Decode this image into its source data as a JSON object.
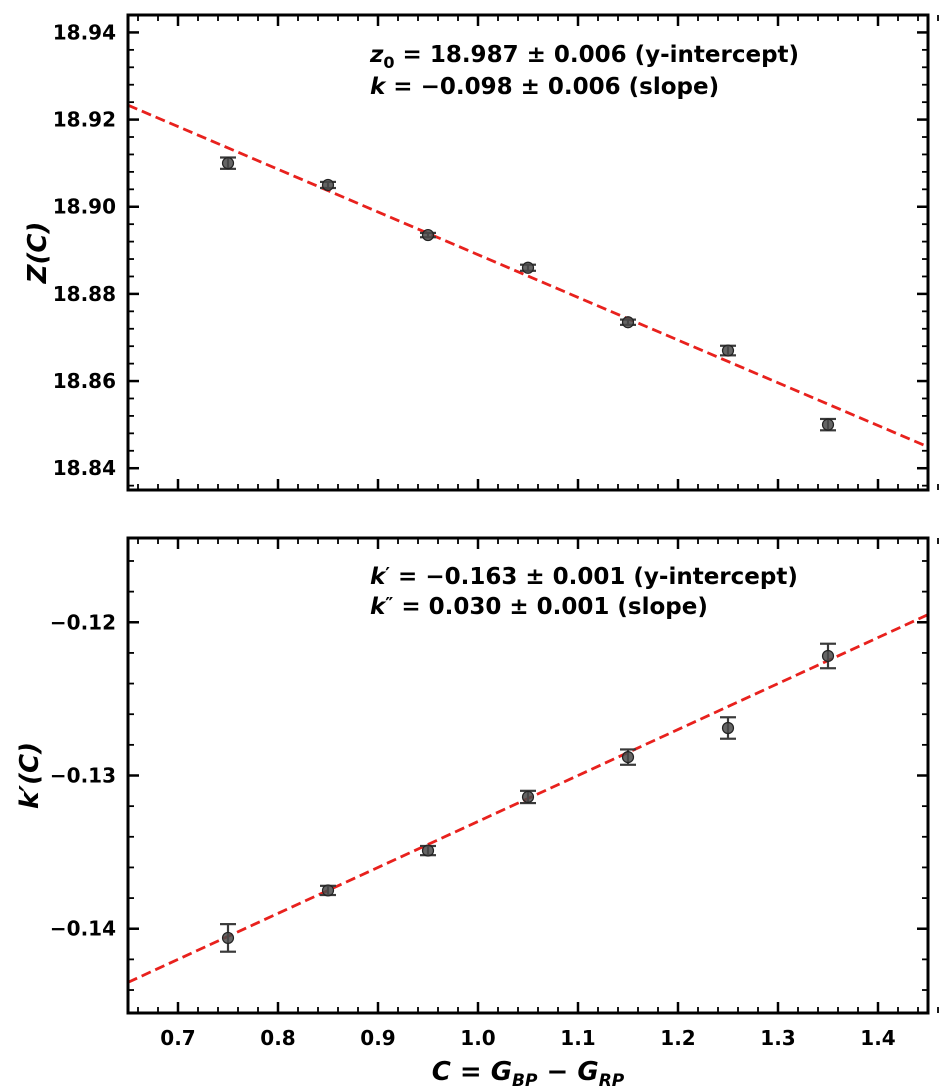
{
  "chart_data": [
    {
      "type": "scatter",
      "xlim": [
        0.65,
        1.45
      ],
      "ylim": [
        18.835,
        18.944
      ],
      "yticks": [
        "18.84",
        "18.86",
        "18.88",
        "18.90",
        "18.92",
        "18.94"
      ],
      "ytick_values": [
        18.84,
        18.86,
        18.88,
        18.9,
        18.92,
        18.94
      ],
      "ylabel": "Z(C)",
      "annotation_lines": [
        {
          "sym": "z",
          "sub": "0",
          "sup": "",
          "rest": " = 18.987 ± 0.006 (y-intercept)"
        },
        {
          "sym": "k",
          "sub": "",
          "sup": "",
          "rest": " = −0.098 ± 0.006 (slope)"
        }
      ],
      "points": [
        {
          "x": 0.75,
          "y": 18.91,
          "err": 0.0013
        },
        {
          "x": 0.85,
          "y": 18.905,
          "err": 0.0007
        },
        {
          "x": 0.95,
          "y": 18.8935,
          "err": 0.0005
        },
        {
          "x": 1.05,
          "y": 18.886,
          "err": 0.0007
        },
        {
          "x": 1.15,
          "y": 18.8735,
          "err": 0.0006
        },
        {
          "x": 1.25,
          "y": 18.867,
          "err": 0.0011
        },
        {
          "x": 1.35,
          "y": 18.85,
          "err": 0.0013
        }
      ],
      "fit": {
        "intercept": 18.987,
        "slope": -0.098,
        "color": "#e8211d"
      }
    },
    {
      "type": "scatter",
      "xlim": [
        0.65,
        1.45
      ],
      "ylim": [
        -0.1455,
        -0.1145
      ],
      "yticks": [
        "−0.12",
        "−0.13",
        "−0.14"
      ],
      "ytick_values": [
        -0.12,
        -0.13,
        -0.14
      ],
      "xticks": [
        "0.7",
        "0.8",
        "0.9",
        "1.0",
        "1.1",
        "1.2",
        "1.3",
        "1.4"
      ],
      "xtick_values": [
        0.7,
        0.8,
        0.9,
        1.0,
        1.1,
        1.2,
        1.3,
        1.4
      ],
      "ylabel": "k′(C)",
      "xlabel": {
        "main": "C",
        "rest": " = G",
        "sub1": "BP",
        "mid": " − G",
        "sub2": "RP"
      },
      "annotation_lines": [
        {
          "sym": "k",
          "sub": "",
          "sup": "′",
          "rest": " = −0.163 ± 0.001 (y-intercept)"
        },
        {
          "sym": "k",
          "sub": "",
          "sup": "″",
          "rest": " = 0.030 ± 0.001 (slope)"
        }
      ],
      "points": [
        {
          "x": 0.75,
          "y": -0.1406,
          "err": 0.0009
        },
        {
          "x": 0.85,
          "y": -0.1375,
          "err": 0.0003
        },
        {
          "x": 0.95,
          "y": -0.1349,
          "err": 0.0003
        },
        {
          "x": 1.05,
          "y": -0.1314,
          "err": 0.0004
        },
        {
          "x": 1.15,
          "y": -0.1288,
          "err": 0.0005
        },
        {
          "x": 1.25,
          "y": -0.1269,
          "err": 0.0007
        },
        {
          "x": 1.35,
          "y": -0.1222,
          "err": 0.0008
        }
      ],
      "fit": {
        "intercept": -0.163,
        "slope": 0.03,
        "color": "#e8211d"
      }
    }
  ]
}
